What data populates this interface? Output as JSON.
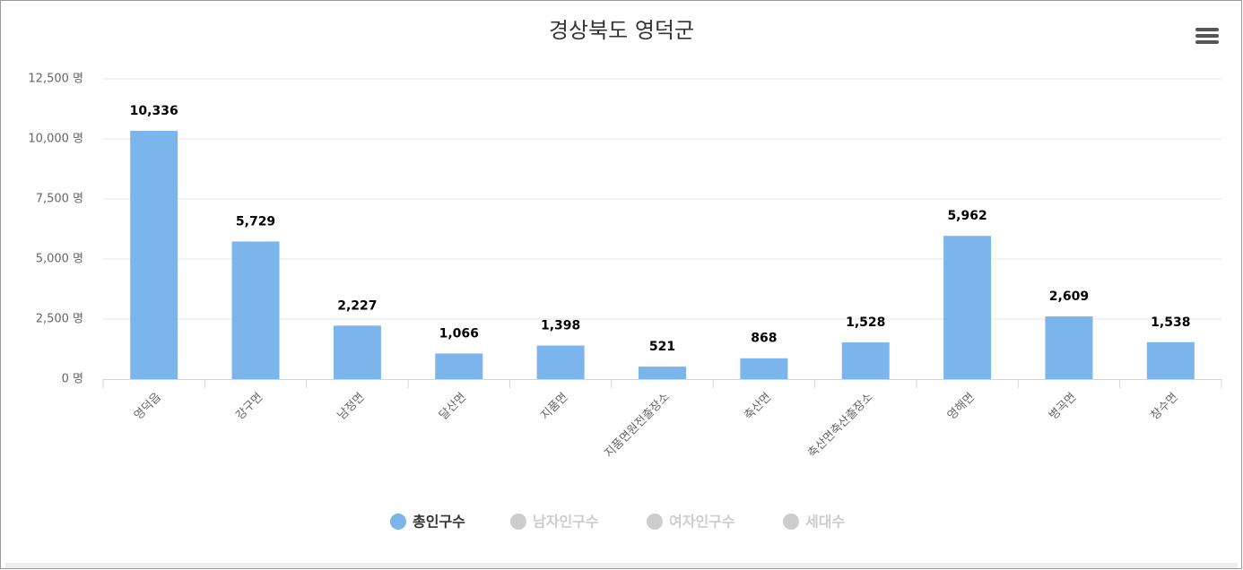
{
  "chart_data": {
    "type": "bar",
    "title": "경상북도 영덕군",
    "categories": [
      "영덕읍",
      "강구면",
      "남정면",
      "달산면",
      "지품면",
      "지품면원전출장소",
      "축산면",
      "축산면축산출장소",
      "영해면",
      "병곡면",
      "창수면"
    ],
    "series": [
      {
        "name": "총인구수",
        "color": "#7cb5ec",
        "visible": true,
        "values": [
          10336,
          5729,
          2227,
          1066,
          1398,
          521,
          868,
          1528,
          5962,
          2609,
          1538
        ],
        "value_labels": [
          "10,336",
          "5,729",
          "2,227",
          "1,066",
          "1,398",
          "521",
          "868",
          "1,528",
          "5,962",
          "2,609",
          "1,538"
        ]
      },
      {
        "name": "남자인구수",
        "color": "#cccccc",
        "visible": false
      },
      {
        "name": "여자인구수",
        "color": "#cccccc",
        "visible": false
      },
      {
        "name": "세대수",
        "color": "#cccccc",
        "visible": false
      }
    ],
    "ylim": [
      0,
      12500
    ],
    "yticks": [
      {
        "value": 0,
        "label": "0 명"
      },
      {
        "value": 2500,
        "label": "2,500 명"
      },
      {
        "value": 5000,
        "label": "5,000 명"
      },
      {
        "value": 7500,
        "label": "7,500 명"
      },
      {
        "value": 10000,
        "label": "10,000 명"
      },
      {
        "value": 12500,
        "label": "12,500 명"
      }
    ],
    "grid": true
  }
}
